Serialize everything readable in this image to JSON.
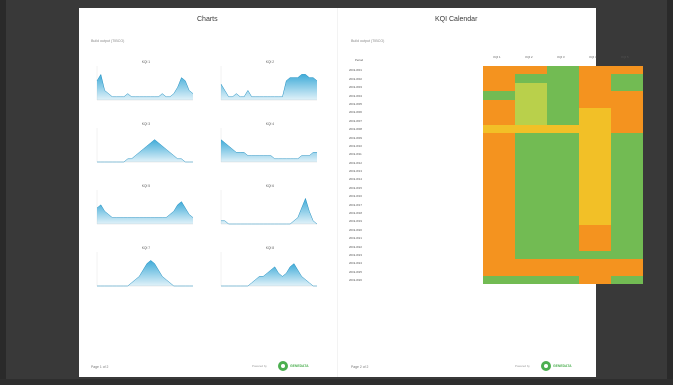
{
  "left_panel": {
    "title": "Charts",
    "subtitle": "Build output (TIBCO)",
    "footer": "Page 1 of 2",
    "powered_by": "Powered by",
    "brand": "GENEDATA"
  },
  "right_panel": {
    "title": "KQI Calendar",
    "subtitle": "Build output (TIBCO)",
    "footer": "Page 2 of 2",
    "powered_by": "Powered by",
    "brand": "GENEDATA",
    "row_header": "Period",
    "columns": [
      "KQI 1",
      "KQI 2",
      "KQI 3",
      "KQI 4",
      "KQI 5"
    ],
    "rows": [
      {
        "label": "2019-W01",
        "cells": [
          "orange",
          "orange",
          "green",
          "orange",
          "orange"
        ]
      },
      {
        "label": "2019-W02",
        "cells": [
          "orange",
          "green",
          "green",
          "orange",
          "green"
        ]
      },
      {
        "label": "2019-W03",
        "cells": [
          "orange",
          "lime",
          "green",
          "orange",
          "green"
        ]
      },
      {
        "label": "2019-W04",
        "cells": [
          "green",
          "lime",
          "green",
          "orange",
          "orange"
        ]
      },
      {
        "label": "2019-W05",
        "cells": [
          "orange",
          "lime",
          "green",
          "orange",
          "orange"
        ]
      },
      {
        "label": "2019-W06",
        "cells": [
          "orange",
          "lime",
          "green",
          "yellow",
          "orange"
        ]
      },
      {
        "label": "2019-W07",
        "cells": [
          "orange",
          "lime",
          "green",
          "yellow",
          "orange"
        ]
      },
      {
        "label": "2019-W08",
        "cells": [
          "yellow",
          "yellow",
          "yellow",
          "yellow",
          "orange"
        ]
      },
      {
        "label": "2019-W09",
        "cells": [
          "orange",
          "green",
          "green",
          "yellow",
          "green"
        ]
      },
      {
        "label": "2019-W10",
        "cells": [
          "orange",
          "green",
          "green",
          "yellow",
          "green"
        ]
      },
      {
        "label": "2019-W11",
        "cells": [
          "orange",
          "green",
          "green",
          "yellow",
          "green"
        ]
      },
      {
        "label": "2019-W12",
        "cells": [
          "orange",
          "green",
          "green",
          "yellow",
          "green"
        ]
      },
      {
        "label": "2019-W13",
        "cells": [
          "orange",
          "green",
          "green",
          "yellow",
          "green"
        ]
      },
      {
        "label": "2019-W14",
        "cells": [
          "orange",
          "green",
          "green",
          "yellow",
          "green"
        ]
      },
      {
        "label": "2019-W15",
        "cells": [
          "orange",
          "green",
          "green",
          "yellow",
          "green"
        ]
      },
      {
        "label": "2019-W16",
        "cells": [
          "orange",
          "green",
          "green",
          "yellow",
          "green"
        ]
      },
      {
        "label": "2019-W17",
        "cells": [
          "orange",
          "green",
          "green",
          "yellow",
          "green"
        ]
      },
      {
        "label": "2019-W18",
        "cells": [
          "orange",
          "green",
          "green",
          "yellow",
          "green"
        ]
      },
      {
        "label": "2019-W19",
        "cells": [
          "orange",
          "green",
          "green",
          "yellow",
          "green"
        ]
      },
      {
        "label": "2019-W20",
        "cells": [
          "orange",
          "green",
          "green",
          "orange",
          "green"
        ]
      },
      {
        "label": "2019-W21",
        "cells": [
          "orange",
          "green",
          "green",
          "orange",
          "green"
        ]
      },
      {
        "label": "2019-W22",
        "cells": [
          "orange",
          "green",
          "green",
          "orange",
          "green"
        ]
      },
      {
        "label": "2019-W23",
        "cells": [
          "orange",
          "green",
          "green",
          "green",
          "green"
        ]
      },
      {
        "label": "2019-W24",
        "cells": [
          "orange",
          "orange",
          "orange",
          "orange",
          "orange"
        ]
      },
      {
        "label": "2019-W25",
        "cells": [
          "orange",
          "orange",
          "orange",
          "orange",
          "orange"
        ]
      },
      {
        "label": "2019-W26",
        "cells": [
          "green",
          "green",
          "green",
          "orange",
          "green"
        ]
      }
    ]
  },
  "colors": {
    "orange": "#f4931f",
    "green": "#72bb53",
    "lime": "#b9d04b",
    "yellow": "#f2c027",
    "area": "#36a7d6"
  },
  "chart_data": [
    {
      "type": "area",
      "title": "KQI 1",
      "x": [
        1,
        2,
        3,
        4,
        5,
        6,
        7,
        8,
        9,
        10,
        11,
        12,
        13,
        14,
        15,
        16,
        17,
        18,
        19,
        20,
        21,
        22,
        23,
        24,
        25,
        26
      ],
      "values": [
        6,
        8,
        3,
        2,
        1,
        1,
        1,
        1,
        2,
        1,
        1,
        1,
        1,
        1,
        1,
        1,
        1,
        2,
        1,
        1,
        2,
        4,
        7,
        6,
        3,
        2
      ],
      "ylim": [
        0,
        10
      ]
    },
    {
      "type": "area",
      "title": "KQI 2",
      "x": [
        1,
        2,
        3,
        4,
        5,
        6,
        7,
        8,
        9,
        10,
        11,
        12,
        13,
        14,
        15,
        16,
        17,
        18,
        19,
        20,
        21,
        22,
        23,
        24,
        25,
        26
      ],
      "values": [
        5,
        3,
        1,
        1,
        2,
        1,
        1,
        3,
        1,
        1,
        1,
        1,
        1,
        1,
        1,
        1,
        1,
        6,
        7,
        7,
        7,
        8,
        8,
        7,
        7,
        6
      ],
      "ylim": [
        0,
        10
      ]
    },
    {
      "type": "area",
      "title": "KQI 3",
      "x": [
        1,
        2,
        3,
        4,
        5,
        6,
        7,
        8,
        9,
        10,
        11,
        12,
        13,
        14,
        15,
        16,
        17,
        18,
        19,
        20,
        21,
        22,
        23,
        24,
        25,
        26
      ],
      "values": [
        0,
        0,
        0,
        0,
        0,
        0,
        0,
        0,
        1,
        1,
        2,
        3,
        4,
        5,
        6,
        7,
        6,
        5,
        4,
        3,
        2,
        1,
        1,
        0,
        0,
        0
      ],
      "ylim": [
        0,
        10
      ]
    },
    {
      "type": "area",
      "title": "KQI 4",
      "x": [
        1,
        2,
        3,
        4,
        5,
        6,
        7,
        8,
        9,
        10,
        11,
        12,
        13,
        14,
        15,
        16,
        17,
        18,
        19,
        20,
        21,
        22,
        23,
        24,
        25,
        26
      ],
      "values": [
        7,
        6,
        5,
        4,
        3,
        3,
        3,
        2,
        2,
        2,
        2,
        2,
        2,
        2,
        1,
        1,
        1,
        1,
        1,
        1,
        1,
        2,
        2,
        2,
        3,
        3
      ],
      "ylim": [
        0,
        10
      ]
    },
    {
      "type": "area",
      "title": "KQI 5",
      "x": [
        1,
        2,
        3,
        4,
        5,
        6,
        7,
        8,
        9,
        10,
        11,
        12,
        13,
        14,
        15,
        16,
        17,
        18,
        19,
        20,
        21,
        22,
        23,
        24,
        25,
        26
      ],
      "values": [
        5,
        6,
        4,
        3,
        2,
        2,
        2,
        2,
        2,
        2,
        2,
        2,
        2,
        2,
        2,
        2,
        2,
        2,
        2,
        3,
        4,
        6,
        7,
        5,
        3,
        2
      ],
      "ylim": [
        0,
        10
      ]
    },
    {
      "type": "area",
      "title": "KQI 6",
      "x": [
        1,
        2,
        3,
        4,
        5,
        6,
        7,
        8,
        9,
        10,
        11,
        12,
        13,
        14,
        15,
        16,
        17,
        18,
        19,
        20,
        21,
        22,
        23,
        24,
        25,
        26
      ],
      "values": [
        1,
        1,
        0,
        0,
        0,
        0,
        0,
        0,
        0,
        0,
        0,
        0,
        0,
        0,
        0,
        0,
        0,
        0,
        0,
        1,
        2,
        5,
        8,
        4,
        1,
        0
      ],
      "ylim": [
        0,
        10
      ]
    },
    {
      "type": "area",
      "title": "KQI 7",
      "x": [
        1,
        2,
        3,
        4,
        5,
        6,
        7,
        8,
        9,
        10,
        11,
        12,
        13,
        14,
        15,
        16,
        17,
        18,
        19,
        20,
        21,
        22,
        23,
        24,
        25,
        26
      ],
      "values": [
        0,
        0,
        0,
        0,
        0,
        0,
        0,
        0,
        0,
        1,
        2,
        3,
        5,
        7,
        8,
        7,
        5,
        3,
        2,
        1,
        0,
        0,
        0,
        0,
        0,
        0
      ],
      "ylim": [
        0,
        10
      ]
    },
    {
      "type": "area",
      "title": "KQI 8",
      "x": [
        1,
        2,
        3,
        4,
        5,
        6,
        7,
        8,
        9,
        10,
        11,
        12,
        13,
        14,
        15,
        16,
        17,
        18,
        19,
        20,
        21,
        22,
        23,
        24,
        25,
        26
      ],
      "values": [
        0,
        0,
        0,
        0,
        0,
        0,
        0,
        0,
        1,
        2,
        3,
        3,
        4,
        5,
        6,
        4,
        3,
        4,
        6,
        7,
        5,
        3,
        2,
        1,
        0,
        0
      ],
      "ylim": [
        0,
        10
      ]
    }
  ]
}
